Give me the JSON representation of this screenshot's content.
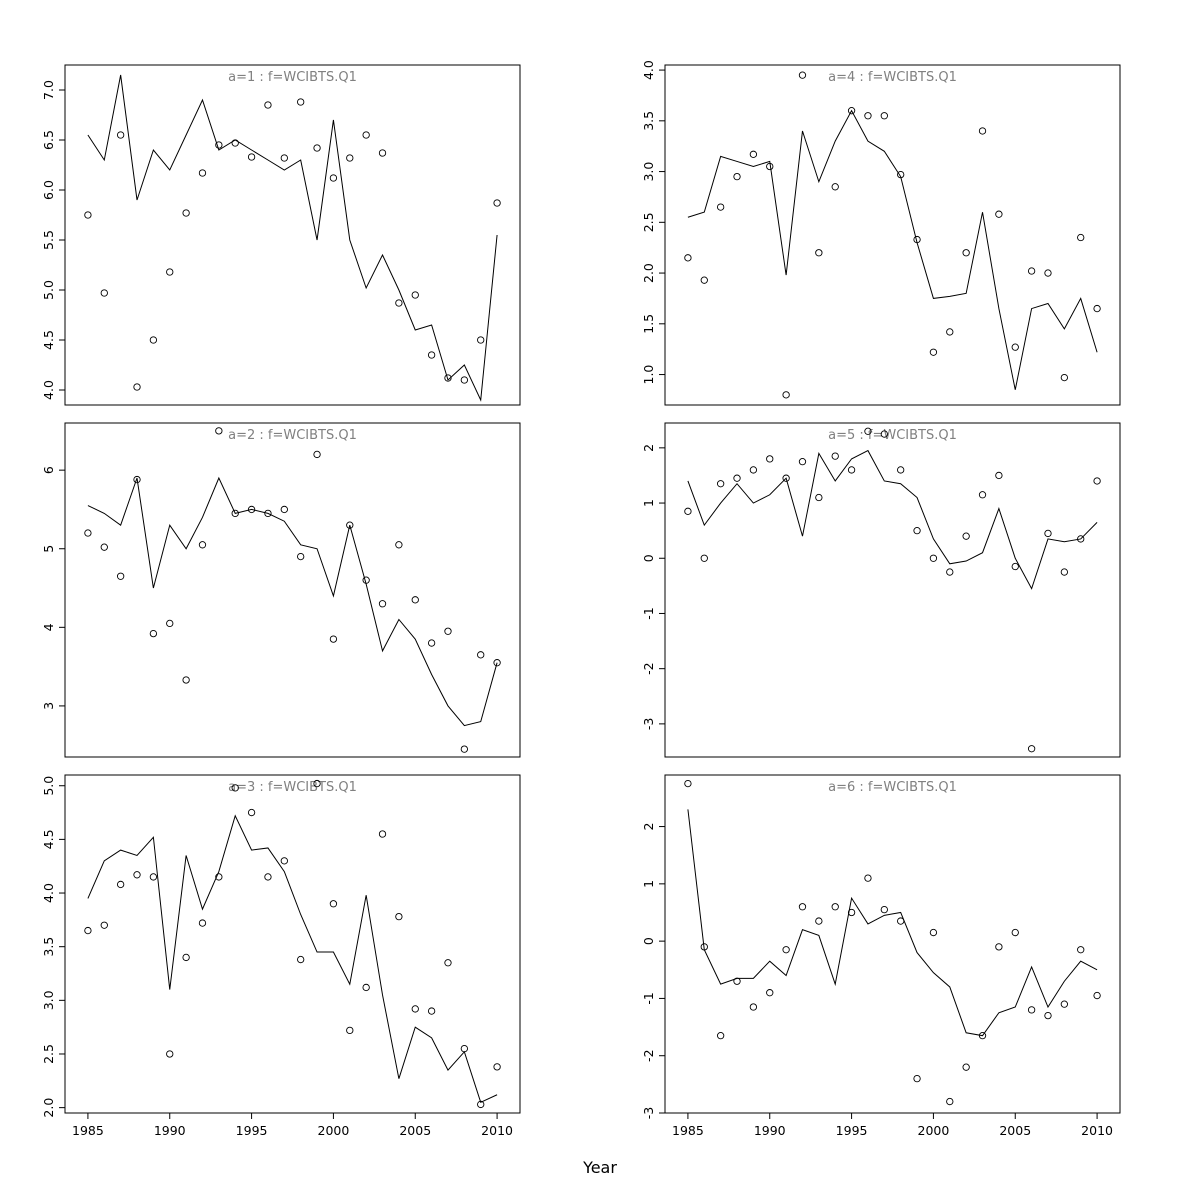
{
  "figure": {
    "xlabel": "Year",
    "background_color": "#ffffff",
    "line_color": "#000000",
    "point_color": "#000000",
    "title_color": "#808080"
  },
  "chart_data": [
    {
      "type": "line",
      "title": "a=1  :  f=WCIBTS.Q1",
      "xlabel": "Year",
      "xlim": [
        1983.6,
        2011.4
      ],
      "ylim": [
        3.85,
        7.25
      ],
      "xticks": [
        1985,
        1990,
        1995,
        2000,
        2005,
        2010
      ],
      "xtick_labels": [
        "1985",
        "1990",
        "1995",
        "2000",
        "2005",
        "2010"
      ],
      "yticks": [
        4.0,
        4.5,
        5.0,
        5.5,
        6.0,
        6.5,
        7.0
      ],
      "ytick_labels": [
        "4.0",
        "4.5",
        "5.0",
        "5.5",
        "6.0",
        "6.5",
        "7.0"
      ],
      "x": [
        1985,
        1986,
        1987,
        1988,
        1989,
        1990,
        1991,
        1992,
        1993,
        1994,
        1995,
        1996,
        1997,
        1998,
        1999,
        2000,
        2001,
        2002,
        2003,
        2004,
        2005,
        2006,
        2007,
        2008,
        2009,
        2010
      ],
      "series": [
        {
          "name": "fitted-line",
          "style": "line",
          "values": [
            6.55,
            6.3,
            7.15,
            5.9,
            6.4,
            6.2,
            6.55,
            6.9,
            6.4,
            6.5,
            6.4,
            6.3,
            6.2,
            6.3,
            5.5,
            6.7,
            5.5,
            5.02,
            5.35,
            5.0,
            4.6,
            4.65,
            4.1,
            4.25,
            3.9,
            5.55
          ]
        },
        {
          "name": "observed-points",
          "style": "points",
          "values": [
            5.75,
            4.97,
            6.55,
            4.03,
            4.5,
            5.18,
            5.77,
            6.17,
            6.45,
            6.47,
            6.33,
            6.85,
            6.32,
            6.88,
            6.42,
            6.12,
            6.32,
            6.55,
            6.37,
            4.87,
            4.95,
            4.35,
            4.12,
            4.1,
            4.5,
            5.87
          ]
        }
      ]
    },
    {
      "type": "line",
      "title": "a=2  :  f=WCIBTS.Q1",
      "xlabel": "Year",
      "xlim": [
        1983.6,
        2011.4
      ],
      "ylim": [
        2.35,
        6.6
      ],
      "xticks": [
        1985,
        1990,
        1995,
        2000,
        2005,
        2010
      ],
      "xtick_labels": [
        "1985",
        "1990",
        "1995",
        "2000",
        "2005",
        "2010"
      ],
      "yticks": [
        3,
        4,
        5,
        6
      ],
      "ytick_labels": [
        "3",
        "4",
        "5",
        "6"
      ],
      "x": [
        1985,
        1986,
        1987,
        1988,
        1989,
        1990,
        1991,
        1992,
        1993,
        1994,
        1995,
        1996,
        1997,
        1998,
        1999,
        2000,
        2001,
        2002,
        2003,
        2004,
        2005,
        2006,
        2007,
        2008,
        2009,
        2010
      ],
      "series": [
        {
          "name": "fitted-line",
          "style": "line",
          "values": [
            5.55,
            5.45,
            5.3,
            5.9,
            4.5,
            5.3,
            5.0,
            5.4,
            5.9,
            5.45,
            5.5,
            5.45,
            5.35,
            5.05,
            5.0,
            4.4,
            5.3,
            4.55,
            3.7,
            4.1,
            3.85,
            3.4,
            3.0,
            2.75,
            2.8,
            3.55
          ]
        },
        {
          "name": "observed-points",
          "style": "points",
          "values": [
            5.2,
            5.02,
            4.65,
            5.88,
            3.92,
            4.05,
            3.33,
            5.05,
            6.5,
            5.45,
            5.5,
            5.45,
            5.5,
            4.9,
            6.2,
            3.85,
            5.3,
            4.6,
            4.3,
            5.05,
            4.35,
            3.8,
            3.95,
            2.45,
            3.65,
            3.55
          ]
        }
      ]
    },
    {
      "type": "line",
      "title": "a=3  :  f=WCIBTS.Q1",
      "xlabel": "Year",
      "xlim": [
        1983.6,
        2011.4
      ],
      "ylim": [
        1.95,
        5.1
      ],
      "xticks": [
        1985,
        1990,
        1995,
        2000,
        2005,
        2010
      ],
      "xtick_labels": [
        "1985",
        "1990",
        "1995",
        "2000",
        "2005",
        "2010"
      ],
      "yticks": [
        2.0,
        2.5,
        3.0,
        3.5,
        4.0,
        4.5,
        5.0
      ],
      "ytick_labels": [
        "2.0",
        "2.5",
        "3.0",
        "3.5",
        "4.0",
        "4.5",
        "5.0"
      ],
      "x": [
        1985,
        1986,
        1987,
        1988,
        1989,
        1990,
        1991,
        1992,
        1993,
        1994,
        1995,
        1996,
        1997,
        1998,
        1999,
        2000,
        2001,
        2002,
        2003,
        2004,
        2005,
        2006,
        2007,
        2008,
        2009,
        2010
      ],
      "series": [
        {
          "name": "fitted-line",
          "style": "line",
          "values": [
            3.95,
            4.3,
            4.4,
            4.35,
            4.52,
            3.1,
            4.35,
            3.85,
            4.2,
            4.72,
            4.4,
            4.42,
            4.2,
            3.8,
            3.45,
            3.45,
            3.15,
            3.98,
            3.05,
            2.27,
            2.75,
            2.65,
            2.35,
            2.52,
            2.05,
            2.12
          ]
        },
        {
          "name": "observed-points",
          "style": "points",
          "values": [
            3.65,
            3.7,
            4.08,
            4.17,
            4.15,
            2.5,
            3.4,
            3.72,
            4.15,
            4.98,
            4.75,
            4.15,
            4.3,
            3.38,
            5.02,
            3.9,
            2.72,
            3.12,
            4.55,
            3.78,
            2.92,
            2.9,
            3.35,
            2.55,
            2.03,
            2.38
          ]
        }
      ]
    },
    {
      "type": "line",
      "title": "a=4  :  f=WCIBTS.Q1",
      "xlabel": "Year",
      "xlim": [
        1983.6,
        2011.4
      ],
      "ylim": [
        0.7,
        4.05
      ],
      "xticks": [
        1985,
        1990,
        1995,
        2000,
        2005,
        2010
      ],
      "xtick_labels": [
        "1985",
        "1990",
        "1995",
        "2000",
        "2005",
        "2010"
      ],
      "yticks": [
        1.0,
        1.5,
        2.0,
        2.5,
        3.0,
        3.5,
        4.0
      ],
      "ytick_labels": [
        "1.0",
        "1.5",
        "2.0",
        "2.5",
        "3.0",
        "3.5",
        "4.0"
      ],
      "x": [
        1985,
        1986,
        1987,
        1988,
        1989,
        1990,
        1991,
        1992,
        1993,
        1994,
        1995,
        1996,
        1997,
        1998,
        1999,
        2000,
        2001,
        2002,
        2003,
        2004,
        2005,
        2006,
        2007,
        2008,
        2009,
        2010
      ],
      "series": [
        {
          "name": "fitted-line",
          "style": "line",
          "values": [
            2.55,
            2.6,
            3.15,
            3.1,
            3.05,
            3.1,
            1.98,
            3.4,
            2.9,
            3.3,
            3.6,
            3.3,
            3.2,
            2.95,
            2.3,
            1.75,
            1.77,
            1.8,
            2.6,
            1.65,
            0.85,
            1.65,
            1.7,
            1.45,
            1.75,
            1.22
          ]
        },
        {
          "name": "observed-points",
          "style": "points",
          "values": [
            2.15,
            1.93,
            2.65,
            2.95,
            3.17,
            3.05,
            0.8,
            3.95,
            2.2,
            2.85,
            3.6,
            3.55,
            3.55,
            2.97,
            2.33,
            1.22,
            1.42,
            2.2,
            3.4,
            2.58,
            1.27,
            2.02,
            2.0,
            0.97,
            2.35,
            1.65
          ]
        }
      ]
    },
    {
      "type": "line",
      "title": "a=5  :  f=WCIBTS.Q1",
      "xlabel": "Year",
      "xlim": [
        1983.6,
        2011.4
      ],
      "ylim": [
        -3.6,
        2.45
      ],
      "xticks": [
        1985,
        1990,
        1995,
        2000,
        2005,
        2010
      ],
      "xtick_labels": [
        "1985",
        "1990",
        "1995",
        "2000",
        "2005",
        "2010"
      ],
      "yticks": [
        -3,
        -2,
        -1,
        0,
        1,
        2
      ],
      "ytick_labels": [
        "-3",
        "-2",
        "-1",
        "0",
        "1",
        "2"
      ],
      "x": [
        1985,
        1986,
        1987,
        1988,
        1989,
        1990,
        1991,
        1992,
        1993,
        1994,
        1995,
        1996,
        1997,
        1998,
        1999,
        2000,
        2001,
        2002,
        2003,
        2004,
        2005,
        2006,
        2007,
        2008,
        2009,
        2010
      ],
      "series": [
        {
          "name": "fitted-line",
          "style": "line",
          "values": [
            1.4,
            0.6,
            1.0,
            1.35,
            1.0,
            1.15,
            1.45,
            0.4,
            1.9,
            1.4,
            1.8,
            1.95,
            1.4,
            1.35,
            1.1,
            0.35,
            -0.1,
            -0.05,
            0.1,
            0.9,
            0.0,
            -0.55,
            0.35,
            0.3,
            0.35,
            0.65
          ]
        },
        {
          "name": "observed-points",
          "style": "points",
          "values": [
            0.85,
            0.0,
            1.35,
            1.45,
            1.6,
            1.8,
            1.45,
            1.75,
            1.1,
            1.85,
            1.6,
            2.3,
            2.25,
            1.6,
            0.5,
            0.0,
            -0.25,
            0.4,
            1.15,
            1.5,
            -0.15,
            -3.45,
            0.45,
            -0.25,
            0.35,
            1.4
          ]
        }
      ]
    },
    {
      "type": "line",
      "title": "a=6  :  f=WCIBTS.Q1",
      "xlabel": "Year",
      "xlim": [
        1983.6,
        2011.4
      ],
      "ylim": [
        -3.0,
        2.9
      ],
      "xticks": [
        1985,
        1990,
        1995,
        2000,
        2005,
        2010
      ],
      "xtick_labels": [
        "1985",
        "1990",
        "1995",
        "2000",
        "2005",
        "2010"
      ],
      "yticks": [
        -3,
        -2,
        -1,
        0,
        1,
        2
      ],
      "ytick_labels": [
        "-3",
        "-2",
        "-1",
        "0",
        "1",
        "2"
      ],
      "x": [
        1985,
        1986,
        1987,
        1988,
        1989,
        1990,
        1991,
        1992,
        1993,
        1994,
        1995,
        1996,
        1997,
        1998,
        1999,
        2000,
        2001,
        2002,
        2003,
        2004,
        2005,
        2006,
        2007,
        2008,
        2009,
        2010
      ],
      "series": [
        {
          "name": "fitted-line",
          "style": "line",
          "values": [
            2.3,
            -0.15,
            -0.75,
            -0.65,
            -0.65,
            -0.35,
            -0.6,
            0.2,
            0.1,
            -0.75,
            0.75,
            0.3,
            0.45,
            0.5,
            -0.2,
            -0.55,
            -0.8,
            -1.6,
            -1.65,
            -1.25,
            -1.15,
            -0.45,
            -1.15,
            -0.7,
            -0.35,
            -0.5
          ]
        },
        {
          "name": "observed-points",
          "style": "points",
          "values": [
            2.75,
            -0.1,
            -1.65,
            -0.7,
            -1.15,
            -0.9,
            -0.15,
            0.6,
            0.35,
            0.6,
            0.5,
            1.1,
            0.55,
            0.35,
            -2.4,
            0.15,
            -2.8,
            -2.2,
            -1.65,
            -0.1,
            0.15,
            -1.2,
            -1.3,
            -1.1,
            -0.15,
            -0.95
          ]
        }
      ]
    }
  ]
}
